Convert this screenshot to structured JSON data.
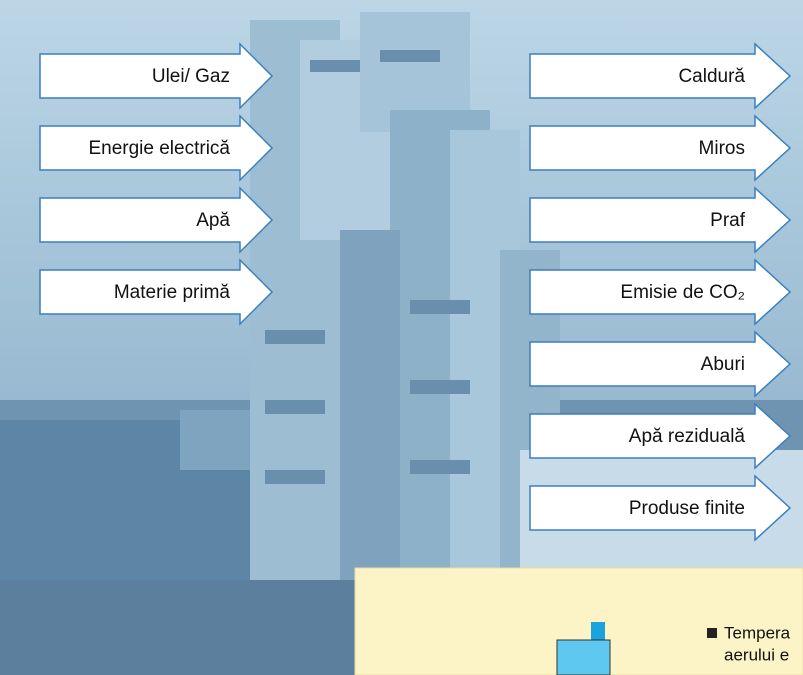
{
  "inputs": [
    "Ulei/ Gaz",
    "Energie electrică",
    "Apă",
    "Materie primă"
  ],
  "outputs": [
    "Caldură",
    "Miros",
    "Praf",
    "Emisie de CO₂",
    "Aburi",
    "Apă reziduală",
    "Produse finite"
  ],
  "info_box": {
    "lines": [
      "Tempera",
      "aerului e"
    ]
  }
}
